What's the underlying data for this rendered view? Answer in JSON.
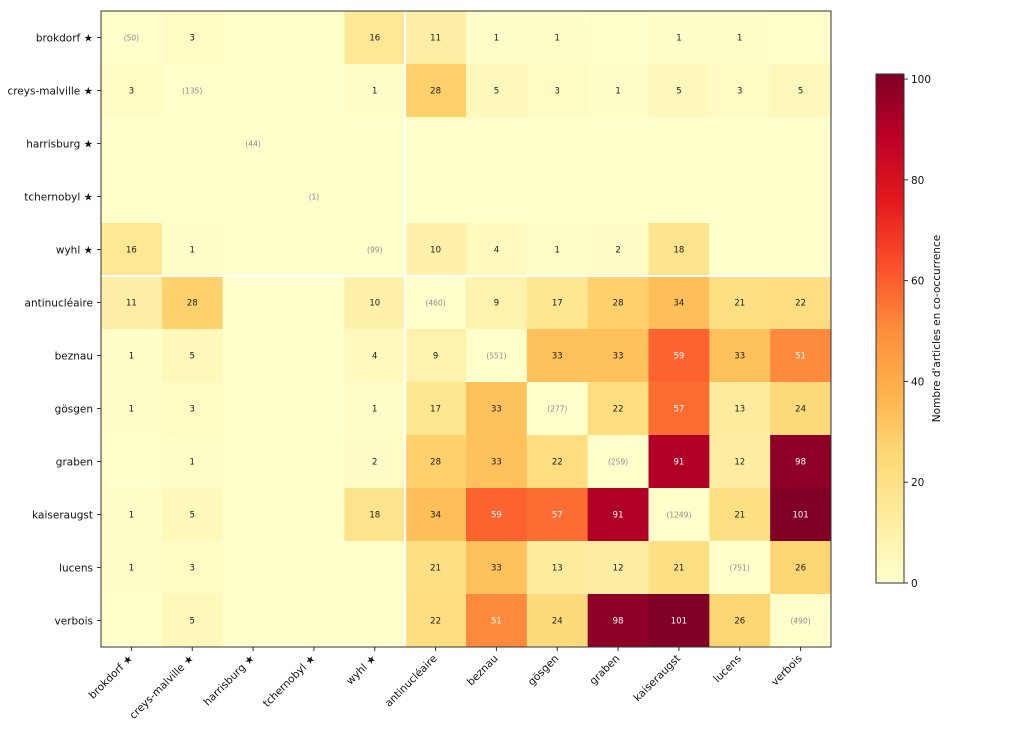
{
  "chart_data": {
    "type": "heatmap",
    "title": "",
    "xlabel": "",
    "ylabel": "",
    "rows": [
      "brokdorf ★",
      "creys-malville ★",
      "harrisburg ★",
      "tchernobyl ★",
      "wyhl ★",
      "antinucléaire",
      "beznau",
      "gösgen",
      "graben",
      "kaiseraugst",
      "lucens",
      "verbois"
    ],
    "columns": [
      "brokdorf ★",
      "creys-malville ★",
      "harrisburg ★",
      "tchernobyl ★",
      "wyhl ★",
      "antinucléaire",
      "beznau",
      "gösgen",
      "graben",
      "kaiseraugst",
      "lucens",
      "verbois"
    ],
    "values": [
      [
        null,
        3,
        null,
        null,
        16,
        11,
        1,
        1,
        null,
        1,
        1,
        null
      ],
      [
        3,
        null,
        null,
        null,
        1,
        28,
        5,
        3,
        1,
        5,
        3,
        5
      ],
      [
        null,
        null,
        null,
        null,
        null,
        null,
        null,
        null,
        null,
        null,
        null,
        null
      ],
      [
        null,
        null,
        null,
        null,
        null,
        null,
        null,
        null,
        null,
        null,
        null,
        null
      ],
      [
        16,
        1,
        null,
        null,
        null,
        10,
        4,
        1,
        2,
        18,
        null,
        null
      ],
      [
        11,
        28,
        null,
        null,
        10,
        null,
        9,
        17,
        28,
        34,
        21,
        22
      ],
      [
        1,
        5,
        null,
        null,
        4,
        9,
        null,
        33,
        33,
        59,
        33,
        51
      ],
      [
        1,
        3,
        null,
        null,
        1,
        17,
        33,
        null,
        22,
        57,
        13,
        24
      ],
      [
        null,
        1,
        null,
        null,
        2,
        28,
        33,
        22,
        null,
        91,
        12,
        98
      ],
      [
        1,
        5,
        null,
        null,
        18,
        34,
        59,
        57,
        91,
        null,
        21,
        101
      ],
      [
        1,
        3,
        null,
        null,
        null,
        21,
        33,
        13,
        12,
        21,
        null,
        26
      ],
      [
        null,
        5,
        null,
        null,
        null,
        22,
        51,
        24,
        98,
        101,
        26,
        null
      ]
    ],
    "diagonal_labels": [
      "(50)",
      "(135)",
      "(44)",
      "(1)",
      "(99)",
      "(460)",
      "(551)",
      "(277)",
      "(259)",
      "(1249)",
      "(751)",
      "(490)"
    ],
    "separator_after_index": 4,
    "colorbar": {
      "label": "Nombre d'articles en co-occurrence",
      "min": 0,
      "max": 101,
      "ticks": [
        0,
        20,
        40,
        60,
        80,
        100
      ],
      "colormap": [
        "#ffffcc",
        "#ffeda0",
        "#fed976",
        "#feb24c",
        "#fd8d3c",
        "#fc4e2a",
        "#e31a1c",
        "#bd0026",
        "#800026"
      ]
    },
    "grid": false
  }
}
